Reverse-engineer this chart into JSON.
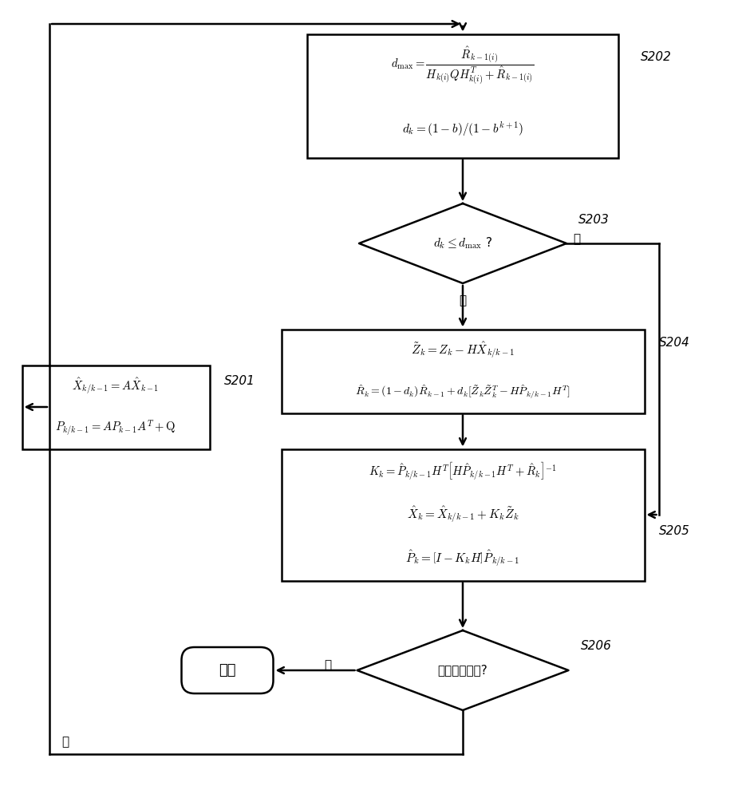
{
  "bg_color": "#ffffff",
  "line_color": "#000000",
  "box_color": "#ffffff",
  "text_color": "#000000",
  "s202_label": "S202",
  "s203_label": "S203",
  "s204_label": "S204",
  "s205_label": "S205",
  "s206_label": "S206",
  "s201_label": "S201",
  "diamond203_text": "$d_k \\leq d_{\\mathrm{max}}$ ?",
  "yes203": "是",
  "no203": "否",
  "diamond206_text": "滤波继续执行?",
  "yes206": "是",
  "no206": "否",
  "end_text": "结束"
}
